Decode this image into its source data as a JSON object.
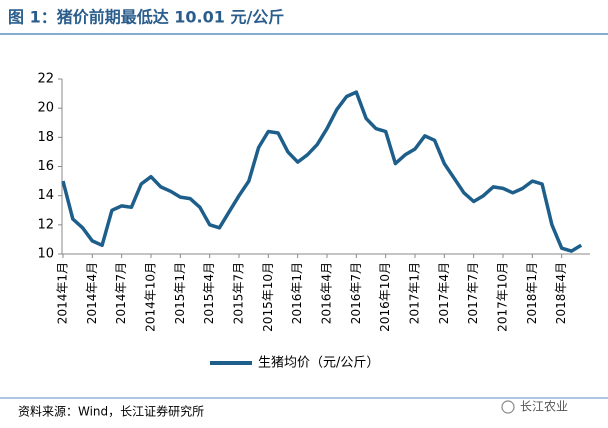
{
  "chart_data": {
    "type": "line",
    "title": "图 1：猪价前期最低达 10.01 元/公斤",
    "categories": [
      "2014年1月",
      null,
      null,
      "2014年4月",
      null,
      null,
      "2014年7月",
      null,
      null,
      "2014年10月",
      null,
      null,
      "2015年1月",
      null,
      null,
      "2015年4月",
      null,
      null,
      "2015年7月",
      null,
      null,
      "2015年10月",
      null,
      null,
      "2016年1月",
      null,
      null,
      "2016年4月",
      null,
      null,
      "2016年7月",
      null,
      null,
      "2016年10月",
      null,
      null,
      "2017年1月",
      null,
      null,
      "2017年4月",
      null,
      null,
      "2017年7月",
      null,
      null,
      "2017年10月",
      null,
      null,
      "2018年1月",
      null,
      null,
      "2018年4月",
      null,
      null
    ],
    "series": [
      {
        "name": "生猪均价（元/公斤）",
        "color": "#1d5f8a",
        "values": [
          15.0,
          12.4,
          11.8,
          10.9,
          10.6,
          13.0,
          13.3,
          13.2,
          14.8,
          15.3,
          14.6,
          14.3,
          13.9,
          13.8,
          13.2,
          12.0,
          11.8,
          12.9,
          14.0,
          15.0,
          17.3,
          18.4,
          18.3,
          17.0,
          16.3,
          16.8,
          17.5,
          18.6,
          19.9,
          20.8,
          21.1,
          19.3,
          18.6,
          18.4,
          16.2,
          16.8,
          17.2,
          18.1,
          17.8,
          16.2,
          15.2,
          14.2,
          13.6,
          14.0,
          14.6,
          14.5,
          14.2,
          14.5,
          15.0,
          14.8,
          12.0,
          10.4,
          10.2,
          10.6
        ]
      }
    ],
    "ylim": [
      10,
      22
    ],
    "yticks": [
      10,
      12,
      14,
      16,
      18,
      20,
      22
    ],
    "grid": false,
    "legend": "bottom",
    "source": "资料来源：Wind，长江证券研究所",
    "watermark": "长江农业"
  }
}
